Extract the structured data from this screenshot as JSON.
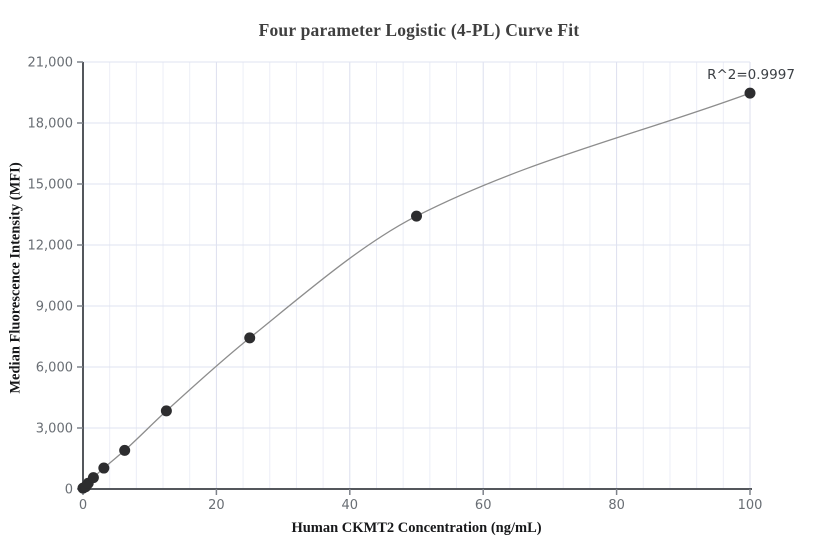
{
  "chart_data": {
    "type": "scatter",
    "title": "Four parameter Logistic (4-PL) Curve Fit",
    "xlabel": "Human CKMT2 Concentration (ng/mL)",
    "ylabel": "Median Fluorescence Intensity (MFI)",
    "annotation": "R^2=0.9997",
    "curve": "4PL fit line through points",
    "xlim": [
      0,
      100
    ],
    "ylim": [
      0,
      21000
    ],
    "x_ticks": [
      0,
      20,
      40,
      60,
      80,
      100
    ],
    "y_ticks": [
      0,
      3000,
      6000,
      9000,
      12000,
      15000,
      18000,
      21000
    ],
    "grid": true,
    "minor_grid_step_x": 4,
    "points": [
      {
        "x": 0,
        "y": 45
      },
      {
        "x": 0.39,
        "y": 110
      },
      {
        "x": 0.78,
        "y": 280
      },
      {
        "x": 1.56,
        "y": 560
      },
      {
        "x": 3.125,
        "y": 1030
      },
      {
        "x": 6.25,
        "y": 1900
      },
      {
        "x": 12.5,
        "y": 3840
      },
      {
        "x": 25,
        "y": 7430
      },
      {
        "x": 50,
        "y": 13420
      },
      {
        "x": 100,
        "y": 19470
      }
    ]
  },
  "style": {
    "background": "#ffffff",
    "point_color": "#2d2d2f",
    "curve_color": "#8d8d8d",
    "axis_color": "#54575c",
    "tick_color": "#7d828a",
    "tick_label_color": "#696e74",
    "grid_minor_color": "#eceef7",
    "grid_major_color": "#dcdfee",
    "grid_horizontal_color": "#dfe3f0",
    "title_color": "#3f3f3f",
    "axis_label_color": "#17181a",
    "annotation_color": "#3c4045"
  }
}
